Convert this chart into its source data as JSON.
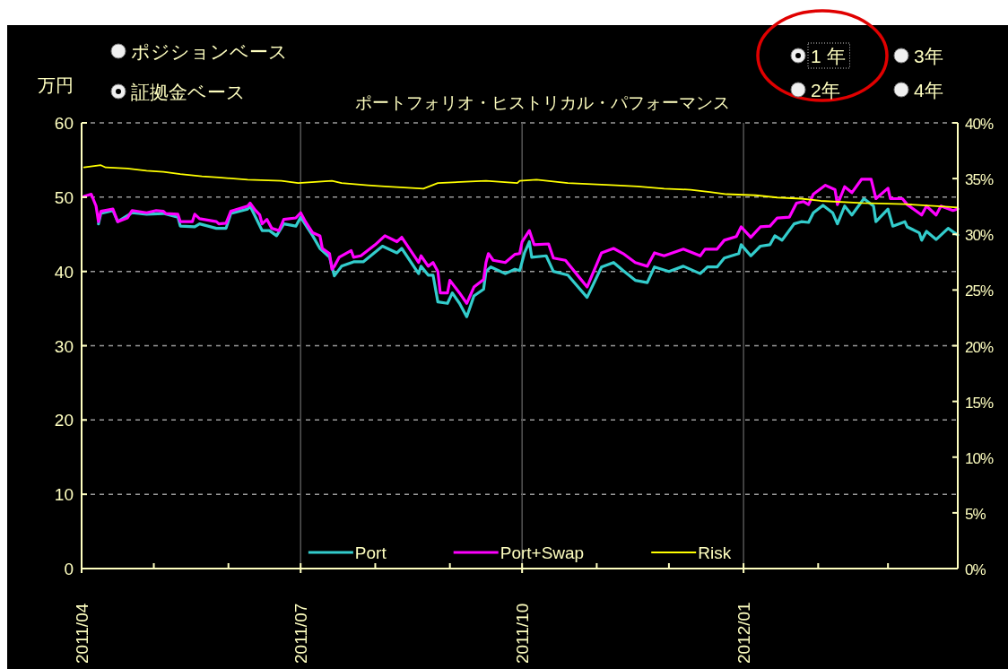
{
  "chart_data": {
    "type": "line",
    "title": "ポートフォリオ・ヒストリカル・パフォーマンス",
    "ylabel": "万円",
    "annotations": [
      "ポジションベース",
      "証拠金ベース",
      "1 年",
      "2年",
      "3年",
      "4年"
    ],
    "xlim": [
      "2011-04-01",
      "2012-03-30"
    ],
    "xticks": [
      {
        "value": "2011-04",
        "label": "2011/04"
      },
      {
        "value": "2011-05",
        "label": null
      },
      {
        "value": "2011-06",
        "label": null
      },
      {
        "value": "2011-07",
        "label": "2011/07"
      },
      {
        "value": "2011-08",
        "label": null
      },
      {
        "value": "2011-09",
        "label": null
      },
      {
        "value": "2011-10",
        "label": "2011/10"
      },
      {
        "value": "2011-11",
        "label": null
      },
      {
        "value": "2011-12",
        "label": null
      },
      {
        "value": "2012-01",
        "label": "2012/01"
      },
      {
        "value": "2012-02",
        "label": null
      },
      {
        "value": "2012-03",
        "label": null
      }
    ],
    "ylim": [
      0,
      60
    ],
    "yticks": [
      0,
      10,
      20,
      30,
      40,
      50,
      60
    ],
    "y2lim": [
      0,
      40
    ],
    "y2ticks": [
      {
        "value": 0,
        "label": "0%"
      },
      {
        "value": 5,
        "label": "5%"
      },
      {
        "value": 10,
        "label": "10%"
      },
      {
        "value": 15,
        "label": "15%"
      },
      {
        "value": 20,
        "label": "20%"
      },
      {
        "value": 25,
        "label": "25%"
      },
      {
        "value": 30,
        "label": "30%"
      },
      {
        "value": 35,
        "label": "35%"
      },
      {
        "value": 40,
        "label": "40%"
      }
    ],
    "grid": true,
    "legend": "bottom",
    "series": [
      {
        "name": "Port",
        "color": "#33cccc",
        "x": [
          "2011-04-08",
          "2011-04-09",
          "2011-04-14",
          "2011-04-16",
          "2011-04-22",
          "2011-04-28",
          "2011-05-05",
          "2011-05-11",
          "2011-05-12",
          "2011-05-18",
          "2011-05-20",
          "2011-05-27",
          "2011-05-31",
          "2011-06-02",
          "2011-06-09",
          "2011-06-10",
          "2011-06-15",
          "2011-06-18",
          "2011-06-21",
          "2011-06-24",
          "2011-06-29",
          "2011-07-01",
          "2011-07-06",
          "2011-07-09",
          "2011-07-13",
          "2011-07-15",
          "2011-07-18",
          "2011-07-23",
          "2011-07-27",
          "2011-08-04",
          "2011-08-10",
          "2011-08-12",
          "2011-08-19",
          "2011-08-20",
          "2011-08-23",
          "2011-08-25",
          "2011-08-27",
          "2011-08-31",
          "2011-09-02",
          "2011-09-05",
          "2011-09-08",
          "2011-09-11",
          "2011-09-15",
          "2011-09-16",
          "2011-09-18",
          "2011-09-24",
          "2011-09-28",
          "2011-09-30",
          "2011-10-02",
          "2011-10-04",
          "2011-10-05",
          "2011-10-11",
          "2011-10-14",
          "2011-10-20",
          "2011-10-28",
          "2011-11-03",
          "2011-11-08",
          "2011-11-12",
          "2011-11-17",
          "2011-11-22",
          "2011-11-25",
          "2011-12-01",
          "2011-12-07",
          "2011-12-14",
          "2011-12-17",
          "2011-12-21",
          "2011-12-24",
          "2011-12-30",
          "2011-12-31",
          "2012-01-04",
          "2012-01-08",
          "2012-01-12",
          "2012-01-14",
          "2012-01-17",
          "2012-01-22",
          "2012-01-25",
          "2012-01-28",
          "2012-01-30",
          "2012-02-03",
          "2012-02-07",
          "2012-02-09",
          "2012-02-12",
          "2012-02-15",
          "2012-02-20",
          "2012-02-24",
          "2012-02-25",
          "2012-03-01",
          "2012-03-03",
          "2012-03-08",
          "2012-03-09",
          "2012-03-14",
          "2012-03-15",
          "2012-03-17",
          "2012-03-21",
          "2012-03-26",
          "2012-03-30"
        ],
        "values": [
          46.4,
          47.8,
          48.2,
          46.7,
          47.9,
          47.7,
          47.8,
          47.3,
          46.1,
          46.0,
          46.4,
          45.8,
          45.8,
          47.8,
          48.4,
          48.8,
          45.5,
          45.5,
          44.8,
          46.4,
          46.1,
          47.3,
          44.8,
          43.1,
          41.9,
          39.4,
          40.7,
          41.3,
          41.3,
          43.4,
          42.5,
          43.1,
          39.7,
          40.7,
          39.5,
          39.5,
          35.9,
          35.7,
          37.1,
          35.7,
          33.9,
          36.7,
          37.6,
          40.0,
          40.6,
          39.7,
          40.3,
          40.1,
          42.5,
          44.0,
          41.9,
          42.1,
          40.0,
          39.5,
          36.5,
          40.6,
          41.2,
          40.1,
          38.8,
          38.5,
          40.6,
          40.0,
          40.7,
          39.7,
          40.6,
          40.6,
          41.8,
          42.4,
          43.6,
          42.1,
          43.4,
          43.6,
          44.8,
          44.2,
          46.4,
          46.7,
          46.6,
          47.9,
          48.9,
          47.9,
          46.4,
          48.8,
          47.6,
          49.8,
          48.8,
          46.7,
          48.4,
          46.1,
          46.7,
          46.0,
          45.2,
          44.2,
          45.4,
          44.3,
          45.8,
          44.9
        ]
      },
      {
        "name": "Port+Swap",
        "color": "#ff00ff",
        "x": [
          "2011-04-02",
          "2011-04-05",
          "2011-04-07",
          "2011-04-08",
          "2011-04-09",
          "2011-04-14",
          "2011-04-16",
          "2011-04-20",
          "2011-04-22",
          "2011-04-28",
          "2011-05-02",
          "2011-05-05",
          "2011-05-06",
          "2011-05-11",
          "2011-05-12",
          "2011-05-17",
          "2011-05-18",
          "2011-05-20",
          "2011-05-27",
          "2011-05-28",
          "2011-05-31",
          "2011-06-02",
          "2011-06-09",
          "2011-06-10",
          "2011-06-12",
          "2011-06-14",
          "2011-06-15",
          "2011-06-17",
          "2011-06-19",
          "2011-06-22",
          "2011-06-24",
          "2011-06-29",
          "2011-07-01",
          "2011-07-03",
          "2011-07-06",
          "2011-07-09",
          "2011-07-10",
          "2011-07-13",
          "2011-07-14",
          "2011-07-15",
          "2011-07-17",
          "2011-07-22",
          "2011-07-23",
          "2011-07-26",
          "2011-08-01",
          "2011-08-05",
          "2011-08-10",
          "2011-08-12",
          "2011-08-19",
          "2011-08-20",
          "2011-08-23",
          "2011-08-25",
          "2011-08-27",
          "2011-08-28",
          "2011-08-31",
          "2011-09-01",
          "2011-09-05",
          "2011-09-08",
          "2011-09-11",
          "2011-09-15",
          "2011-09-16",
          "2011-09-17",
          "2011-09-19",
          "2011-09-24",
          "2011-09-28",
          "2011-09-30",
          "2011-10-01",
          "2011-10-04",
          "2011-10-06",
          "2011-10-12",
          "2011-10-14",
          "2011-10-19",
          "2011-10-25",
          "2011-10-28",
          "2011-11-03",
          "2011-11-08",
          "2011-11-12",
          "2011-11-17",
          "2011-11-22",
          "2011-11-25",
          "2011-11-29",
          "2011-12-07",
          "2011-12-14",
          "2011-12-16",
          "2011-12-21",
          "2011-12-24",
          "2011-12-29",
          "2011-12-31",
          "2012-01-04",
          "2012-01-08",
          "2012-01-12",
          "2012-01-15",
          "2012-01-20",
          "2012-01-23",
          "2012-01-26",
          "2012-01-28",
          "2012-01-30",
          "2012-02-04",
          "2012-02-08",
          "2012-02-09",
          "2012-02-12",
          "2012-02-15",
          "2012-02-19",
          "2012-02-23",
          "2012-02-25",
          "2012-03-01",
          "2012-03-02",
          "2012-03-07",
          "2012-03-09",
          "2012-03-15",
          "2012-03-17",
          "2012-03-21",
          "2012-03-23",
          "2012-03-28",
          "2012-03-30"
        ],
        "values": [
          50.1,
          50.4,
          48.8,
          46.7,
          48.1,
          48.4,
          46.7,
          47.2,
          48.2,
          47.9,
          48.2,
          48.1,
          47.8,
          47.7,
          46.7,
          46.7,
          47.7,
          47.1,
          46.7,
          46.4,
          46.5,
          48.1,
          48.8,
          49.2,
          48.3,
          47.6,
          46.4,
          47.0,
          45.8,
          45.5,
          47.0,
          47.2,
          47.9,
          46.7,
          45.2,
          44.8,
          43.1,
          42.4,
          40.3,
          40.7,
          41.9,
          42.8,
          41.9,
          42.1,
          43.6,
          44.8,
          44.0,
          44.6,
          41.2,
          42.1,
          40.7,
          41.2,
          40.0,
          37.1,
          37.1,
          38.8,
          37.1,
          35.7,
          37.9,
          38.9,
          41.2,
          42.4,
          41.5,
          41.2,
          42.3,
          42.4,
          44.0,
          45.5,
          43.6,
          43.7,
          41.8,
          41.5,
          39.1,
          37.9,
          42.5,
          43.1,
          42.4,
          41.2,
          40.7,
          42.5,
          42.1,
          43.0,
          42.1,
          43.0,
          43.0,
          44.2,
          44.7,
          46.0,
          44.6,
          46.0,
          46.1,
          47.2,
          47.3,
          49.2,
          49.4,
          49.0,
          50.4,
          51.6,
          51.0,
          49.0,
          51.4,
          50.6,
          52.4,
          52.4,
          49.8,
          51.2,
          49.8,
          49.8,
          49.0,
          47.6,
          48.8,
          47.6,
          48.8,
          48.2,
          48.4
        ]
      },
      {
        "name": "Risk",
        "color": "#ffff00",
        "axis": "y2",
        "x": [
          "2011-04-02",
          "2011-04-09",
          "2011-04-11",
          "2011-04-20",
          "2011-04-28",
          "2011-05-05",
          "2011-05-12",
          "2011-05-21",
          "2011-05-28",
          "2011-06-09",
          "2011-06-23",
          "2011-06-30",
          "2011-07-14",
          "2011-07-18",
          "2011-07-29",
          "2011-08-05",
          "2011-08-21",
          "2011-08-27",
          "2011-09-16",
          "2011-09-29",
          "2011-09-30",
          "2011-10-07",
          "2011-10-20",
          "2011-11-09",
          "2011-11-18",
          "2011-11-29",
          "2011-12-10",
          "2011-12-18",
          "2011-12-25",
          "2012-01-06",
          "2012-01-15",
          "2012-01-25",
          "2012-02-02",
          "2012-02-19",
          "2012-03-08",
          "2012-03-23",
          "2012-03-30"
        ],
        "values": [
          36.0,
          36.2,
          36.0,
          35.9,
          35.7,
          35.6,
          35.4,
          35.2,
          35.1,
          34.9,
          34.8,
          34.6,
          34.8,
          34.6,
          34.4,
          34.3,
          34.1,
          34.6,
          34.8,
          34.6,
          34.8,
          34.9,
          34.6,
          34.4,
          34.3,
          34.1,
          34.0,
          33.8,
          33.6,
          33.5,
          33.3,
          33.2,
          33.0,
          32.8,
          32.7,
          32.5,
          32.4
        ]
      }
    ]
  }
}
